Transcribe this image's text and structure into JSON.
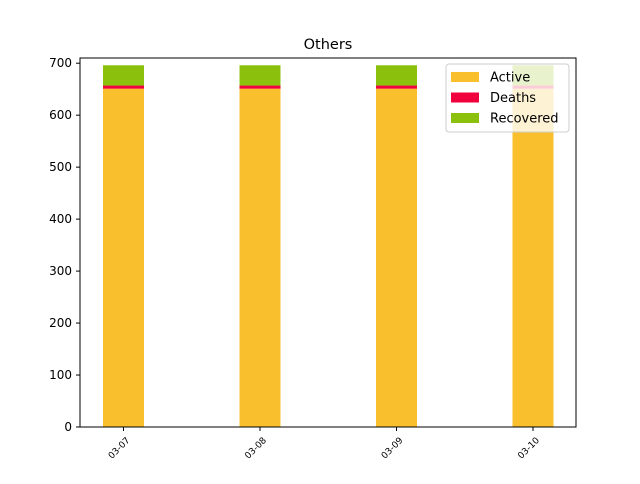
{
  "chart_data": {
    "type": "bar",
    "stacked": true,
    "title": "Others",
    "xlabel": "",
    "ylabel": "",
    "categories": [
      "03-07",
      "03-08",
      "03-09",
      "03-10"
    ],
    "series": [
      {
        "name": "Active",
        "color": "#f9bf2c",
        "values": [
          651,
          651,
          651,
          651
        ]
      },
      {
        "name": "Deaths",
        "color": "#f0003c",
        "values": [
          6,
          6,
          6,
          6
        ]
      },
      {
        "name": "Recovered",
        "color": "#8bc10c",
        "values": [
          39,
          39,
          39,
          39
        ]
      }
    ],
    "ylim": [
      0,
      710
    ],
    "yticks": [
      0,
      100,
      200,
      300,
      400,
      500,
      600,
      700
    ],
    "grid": false,
    "legend": "top-right"
  }
}
